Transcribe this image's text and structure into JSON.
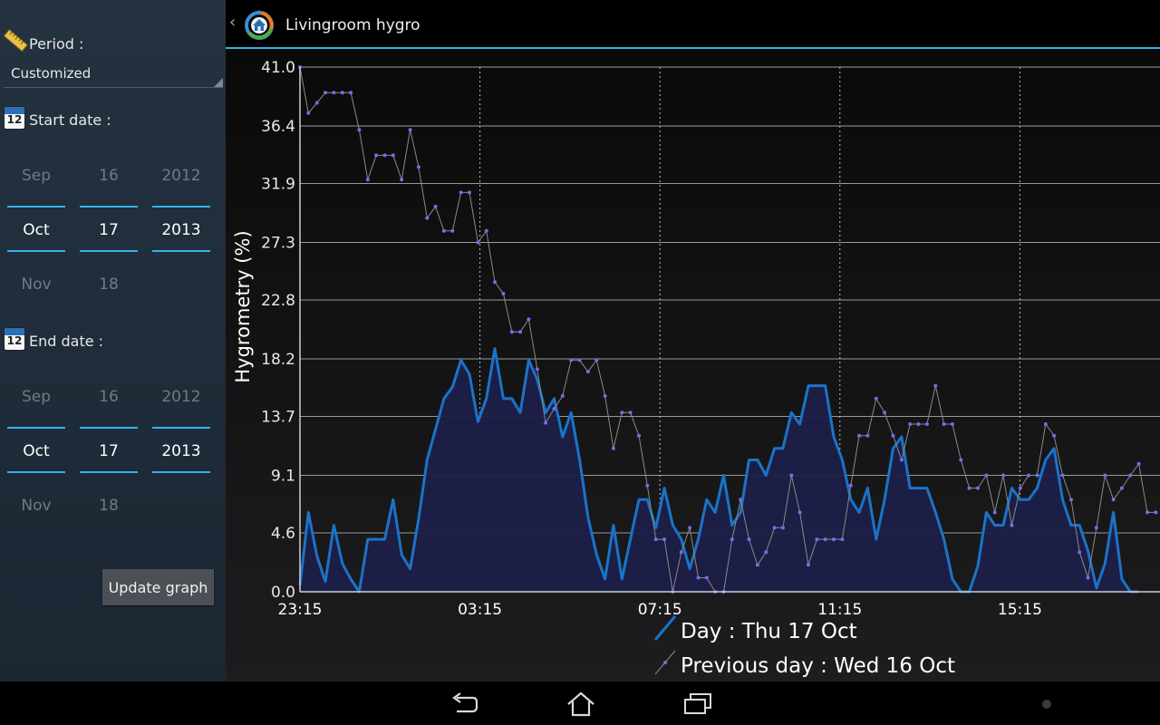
{
  "sidebar": {
    "period_label": "Period :",
    "period_value": "Customized",
    "start_label": "Start date :",
    "end_label": "End date :",
    "calendar_icon_number": "12",
    "start_date": {
      "prev": {
        "month": "Sep",
        "day": "16",
        "year": "2012"
      },
      "current": {
        "month": "Oct",
        "day": "17",
        "year": "2013"
      },
      "next": {
        "month": "Nov",
        "day": "18",
        "year": ""
      }
    },
    "end_date": {
      "prev": {
        "month": "Sep",
        "day": "16",
        "year": "2012"
      },
      "current": {
        "month": "Oct",
        "day": "17",
        "year": "2013"
      },
      "next": {
        "month": "Nov",
        "day": "18",
        "year": ""
      }
    },
    "update_button": "Update graph"
  },
  "header": {
    "back_glyph": "‹",
    "title": "Livingroom hygro",
    "accent": "#33b5e5"
  },
  "chart_data": {
    "type": "area",
    "title": "",
    "xlabel": "",
    "ylabel": "Hygrometry (%)",
    "y_ticks": [
      "0.0",
      "4.6",
      "9.1",
      "13.7",
      "18.2",
      "22.8",
      "27.3",
      "31.9",
      "36.4",
      "41.0"
    ],
    "x_ticks": [
      "23:15",
      "03:15",
      "07:15",
      "11:15",
      "15:15"
    ],
    "ylim": [
      0,
      41.0
    ],
    "grid": true,
    "legend_position": "bottom",
    "series": [
      {
        "name": "Day : Thu 17 Oct",
        "color": "#1a73c8",
        "style": "area",
        "values": [
          0.5,
          6.2,
          2.8,
          0.8,
          5.2,
          2.2,
          1.0,
          0,
          4.1,
          4.1,
          4.1,
          7.2,
          2.9,
          1.8,
          5.7,
          10.3,
          12.7,
          15.1,
          16.0,
          18.1,
          17.0,
          13.3,
          15.1,
          19.0,
          15.1,
          15.1,
          14.0,
          18.1,
          16.6,
          14.0,
          15.1,
          12.1,
          14.0,
          10.3,
          5.8,
          2.9,
          1.0,
          5.2,
          1.0,
          4.1,
          7.2,
          7.2,
          5.0,
          8.1,
          5.2,
          4.1,
          1.8,
          4.1,
          7.2,
          6.2,
          9.1,
          5.2,
          6.2,
          10.3,
          10.3,
          9.1,
          11.2,
          11.2,
          14.0,
          13.1,
          16.1,
          16.1,
          16.1,
          12.1,
          10.3,
          7.2,
          6.2,
          8.1,
          4.1,
          7.2,
          11.2,
          12.1,
          8.1,
          8.1,
          8.1,
          6.2,
          4.1,
          1.0,
          0,
          0,
          2.0,
          6.2,
          5.2,
          5.2,
          8.1,
          7.2,
          7.2,
          8.1,
          10.3,
          11.2,
          7.2,
          5.2,
          5.2,
          3.2,
          0.3,
          2.2,
          6.2,
          1.0,
          0,
          0
        ]
      },
      {
        "name": "Previous day : Wed 16 Oct",
        "color": "#7b68ee",
        "style": "line-markers",
        "values": [
          41.0,
          37.4,
          38.2,
          39.0,
          39.0,
          39.0,
          39.0,
          36.1,
          32.2,
          34.1,
          34.1,
          34.1,
          32.2,
          36.1,
          33.2,
          29.2,
          30.1,
          28.2,
          28.2,
          31.2,
          31.2,
          27.3,
          28.2,
          24.2,
          23.3,
          20.3,
          20.3,
          21.3,
          17.4,
          13.2,
          14.3,
          15.3,
          18.1,
          18.1,
          17.2,
          18.1,
          15.3,
          11.2,
          14.0,
          14.0,
          12.2,
          8.3,
          4.1,
          4.1,
          0,
          3.1,
          5.0,
          1.1,
          1.1,
          0,
          0,
          4.1,
          7.2,
          4.1,
          2.1,
          3.1,
          5.0,
          5.0,
          9.1,
          6.2,
          2.1,
          4.1,
          4.1,
          4.1,
          4.1,
          8.3,
          12.2,
          12.2,
          15.1,
          14.0,
          12.2,
          10.3,
          13.1,
          13.1,
          13.1,
          16.1,
          13.1,
          13.1,
          10.3,
          8.1,
          8.1,
          9.1,
          6.2,
          9.1,
          5.2,
          8.1,
          9.1,
          9.1,
          13.1,
          12.2,
          9.1,
          7.2,
          3.1,
          1.1,
          5.0,
          9.1,
          7.2,
          8.1,
          9.1,
          10.0,
          6.2,
          6.2
        ]
      }
    ]
  }
}
